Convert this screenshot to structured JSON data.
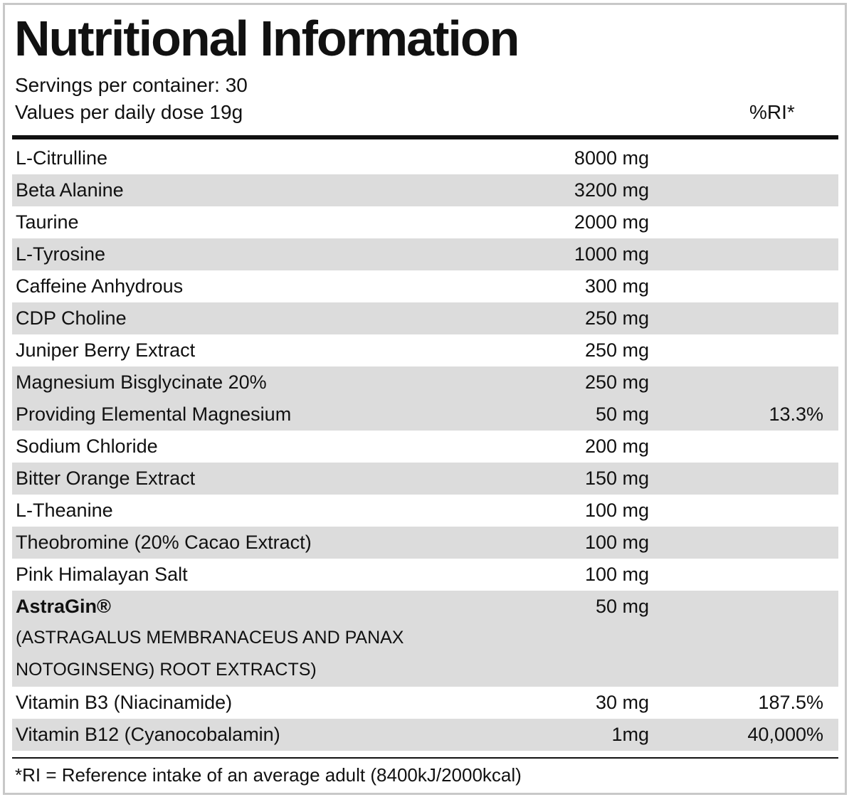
{
  "header": {
    "title": "Nutritional Information",
    "servings": "Servings per container: 30",
    "values_per": "Values per daily dose 19g",
    "ri_heading": "%RI*"
  },
  "table": {
    "rows": [
      {
        "name": "L-Citrulline",
        "amount": "8000 mg"
      },
      {
        "name": "Beta Alanine",
        "amount": "3200 mg"
      },
      {
        "name": "Taurine",
        "amount": "2000 mg"
      },
      {
        "name": "L-Tyrosine",
        "amount": "1000 mg"
      },
      {
        "name": "Caffeine Anhydrous",
        "amount": "300 mg"
      },
      {
        "name": "CDP Choline",
        "amount": "250 mg"
      },
      {
        "name": "Juniper Berry Extract",
        "amount": "250 mg"
      },
      {
        "name": "Magnesium Bisglycinate 20%",
        "amount": "250 mg",
        "sub": {
          "name": "Providing Elemental Magnesium",
          "amount": "50 mg",
          "ri": "13.3%"
        }
      },
      {
        "name": "Sodium Chloride",
        "amount": "200 mg"
      },
      {
        "name": "Bitter Orange Extract",
        "amount": "150 mg"
      },
      {
        "name": "L-Theanine",
        "amount": "100 mg"
      },
      {
        "name": "Theobromine (20% Cacao Extract)",
        "amount": "100 mg"
      },
      {
        "name": "Pink Himalayan Salt",
        "amount": "100 mg"
      },
      {
        "name": "AstraGin®",
        "amount": "50 mg",
        "description": [
          "(ASTRAGALUS MEMBRANACEUS AND PANAX",
          "NOTOGINSENG) ROOT EXTRACTS)"
        ]
      },
      {
        "name": "Vitamin B3 (Niacinamide)",
        "amount": "30 mg",
        "ri": "187.5%"
      },
      {
        "name": "Vitamin B12 (Cyanocobalamin)",
        "amount": "1mg",
        "ri": "40,000%"
      }
    ]
  },
  "footer": {
    "note": "*RI = Reference intake of an average adult (8400kJ/2000kcal)"
  }
}
